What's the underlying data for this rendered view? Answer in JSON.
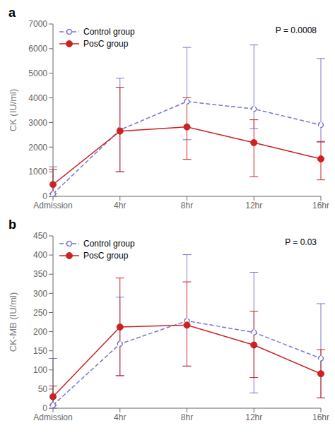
{
  "chart_data": [
    {
      "type": "line",
      "title": "a",
      "y_label": "CK (IU/ml)",
      "annotation": "P = 0.0008",
      "categories": [
        "Admission",
        "4hr",
        "8hr",
        "12hr",
        "16hr"
      ],
      "ylim": [
        0,
        7000
      ],
      "yticks": [
        0,
        1000,
        2000,
        3000,
        4000,
        5000,
        6000,
        7000
      ],
      "grid": false,
      "legend": "upper left",
      "series": [
        {
          "name": "Control group",
          "color": "#7777cc",
          "line_style": "dashed",
          "marker": "open_circle",
          "values": [
            100,
            2700,
            3850,
            3550,
            2900
          ],
          "err_low": [
            100,
            1700,
            1550,
            800,
            700
          ],
          "err_high": [
            1100,
            2100,
            2200,
            2600,
            2700
          ]
        },
        {
          "name": "PosC group",
          "color": "#cc2222",
          "line_style": "solid",
          "marker": "circle",
          "values": [
            480,
            2650,
            2820,
            2180,
            1520
          ],
          "err_low": [
            380,
            1650,
            1320,
            1380,
            850
          ],
          "err_high": [
            620,
            1780,
            1180,
            930,
            710
          ]
        }
      ]
    },
    {
      "type": "line",
      "title": "b",
      "y_label": "CK-MB (IU/ml)",
      "annotation": "P = 0.03",
      "categories": [
        "Admission",
        "4hr",
        "8hr",
        "12hr",
        "16hr"
      ],
      "ylim": [
        0,
        450
      ],
      "yticks": [
        0,
        50,
        100,
        150,
        200,
        250,
        300,
        350,
        400,
        450
      ],
      "grid": false,
      "legend": "upper left",
      "series": [
        {
          "name": "Control group",
          "color": "#7777cc",
          "line_style": "dashed",
          "marker": "open_circle",
          "values": [
            8,
            168,
            228,
            198,
            130
          ],
          "err_low": [
            8,
            83,
            118,
            158,
            103
          ],
          "err_high": [
            122,
            122,
            173,
            157,
            143
          ]
        },
        {
          "name": "PosC group",
          "color": "#cc2222",
          "line_style": "solid",
          "marker": "circle",
          "values": [
            30,
            212,
            217,
            165,
            90
          ],
          "err_low": [
            22,
            127,
            107,
            85,
            63
          ],
          "err_high": [
            28,
            128,
            113,
            88,
            63
          ]
        }
      ]
    }
  ]
}
